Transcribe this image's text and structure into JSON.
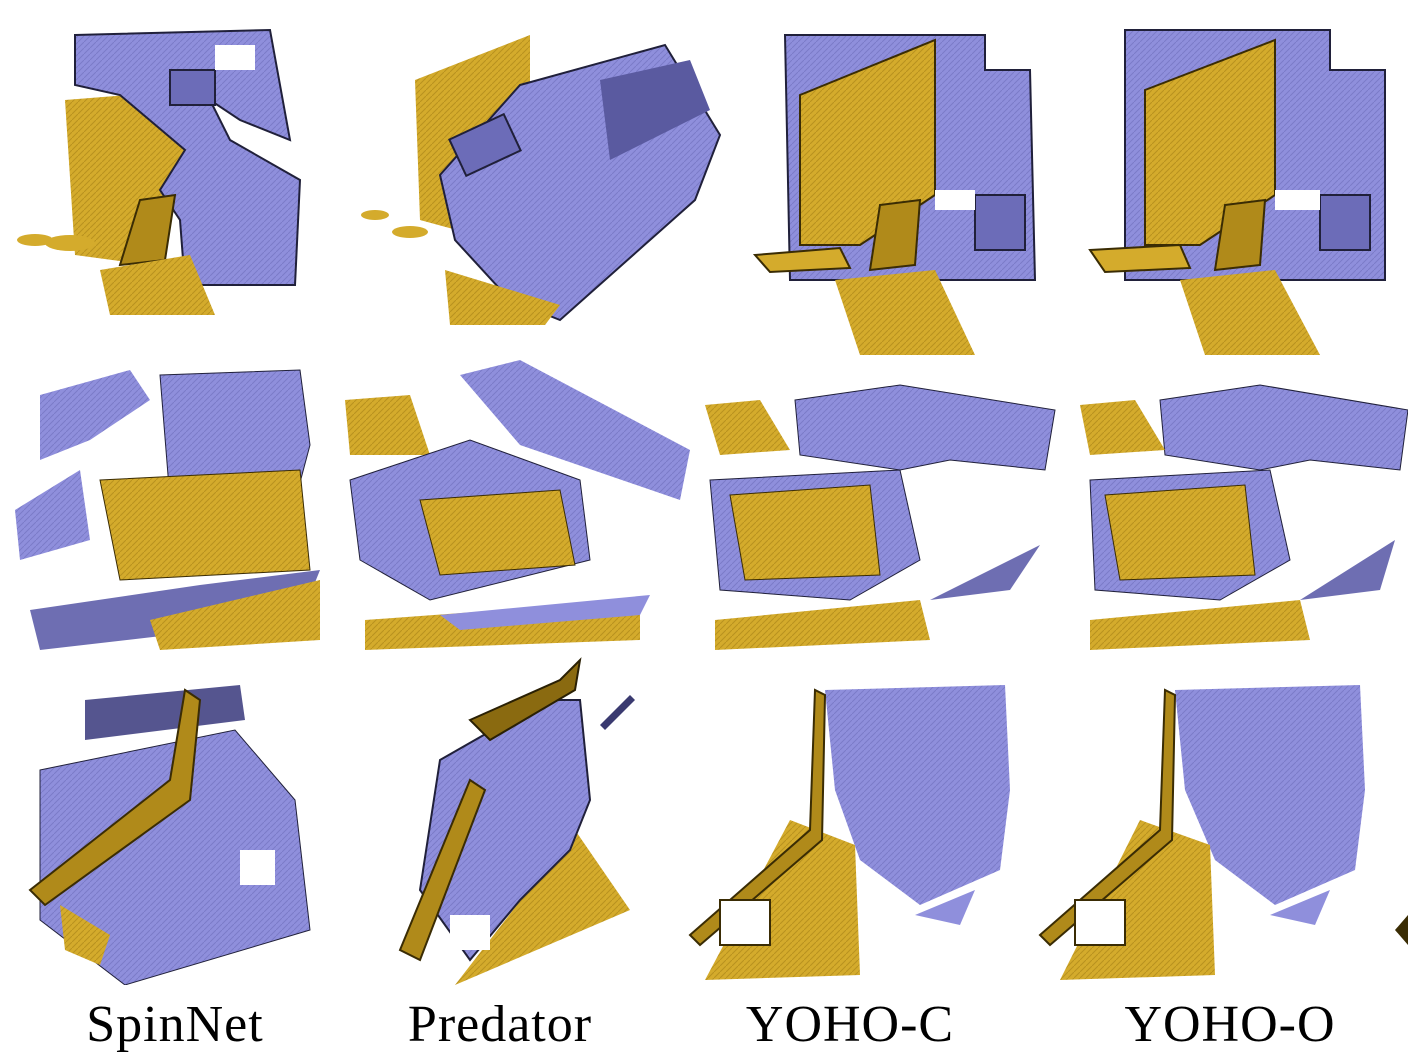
{
  "figure": {
    "columns": [
      {
        "label": "SpinNet"
      },
      {
        "label": "Predator"
      },
      {
        "label": "YOHO-C"
      },
      {
        "label": "YOHO-O"
      }
    ],
    "rows": 3,
    "colors": {
      "source_cloud": "#8f8fdc",
      "source_shadow": "#4b4b8c",
      "target_cloud": "#d4ab2c",
      "target_shadow": "#7a5f10",
      "edge": "#20203a"
    }
  }
}
